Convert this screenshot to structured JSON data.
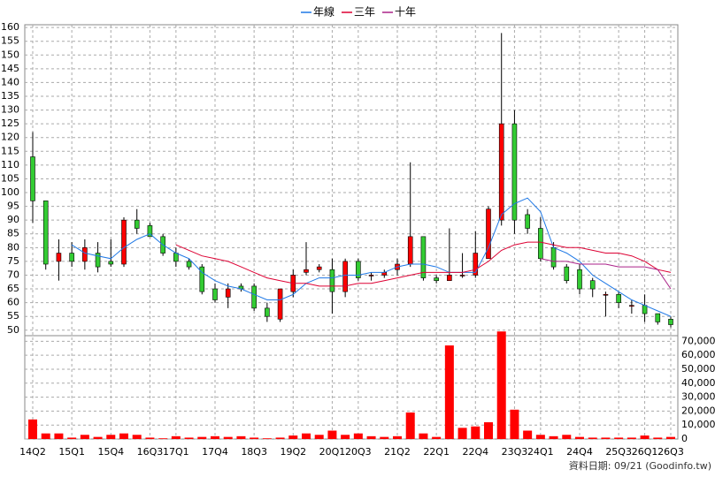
{
  "chart_data": {
    "type": "candlestick",
    "categories": [
      "14Q2",
      null,
      null,
      "15Q1",
      null,
      null,
      "15Q4",
      null,
      null,
      "16Q3",
      null,
      "17Q1",
      null,
      null,
      "17Q4",
      null,
      null,
      "18Q3",
      null,
      null,
      "19Q2",
      null,
      null,
      "20Q1",
      null,
      "20Q3",
      null,
      null,
      "21Q2",
      null,
      null,
      "22Q1",
      null,
      null,
      "22Q4",
      null,
      null,
      "23Q3",
      null,
      "24Q1",
      null,
      null,
      "24Q4",
      null,
      null,
      "25Q3",
      null,
      "26Q1",
      null,
      "26Q3"
    ],
    "open": [
      113,
      97,
      75,
      78,
      75,
      78,
      75,
      74,
      90,
      88,
      84,
      78,
      75,
      73,
      65,
      62,
      66,
      66,
      58,
      54,
      64,
      71,
      72,
      72,
      64,
      75,
      70,
      70,
      72,
      74,
      84,
      69,
      68,
      70,
      70,
      76,
      90,
      125,
      92,
      87,
      80,
      73,
      72,
      68,
      63,
      63,
      59,
      59,
      56,
      54
    ],
    "high": [
      122,
      97,
      83,
      82,
      83,
      82,
      83,
      91,
      94,
      89,
      85,
      80,
      76,
      74,
      67,
      67,
      67,
      67,
      60,
      65,
      72,
      82,
      74,
      76,
      76,
      76,
      71,
      72,
      76,
      111,
      84,
      70,
      87,
      78,
      86,
      95,
      158,
      130,
      94,
      91,
      82,
      74,
      74,
      69,
      64,
      64,
      61,
      63,
      56,
      55
    ],
    "low": [
      89,
      72,
      68,
      73,
      72,
      71,
      73,
      73,
      85,
      84,
      77,
      73,
      72,
      63,
      60,
      58,
      64,
      57,
      53,
      53,
      62,
      70,
      71,
      56,
      62,
      68,
      68,
      69,
      70,
      73,
      68,
      67,
      68,
      69,
      69,
      76,
      88,
      85,
      85,
      75,
      72,
      67,
      63,
      62,
      55,
      58,
      56,
      53,
      52,
      51
    ],
    "close": [
      97,
      74,
      78,
      75,
      80,
      73,
      74,
      90,
      87,
      84,
      78,
      75,
      73,
      64,
      61,
      65,
      65,
      58,
      55,
      65,
      70,
      72,
      73,
      64,
      75,
      69,
      70,
      71,
      74,
      84,
      69,
      68,
      70,
      70,
      78,
      94,
      125,
      90,
      87,
      76,
      73,
      68,
      65,
      65,
      63,
      60,
      59,
      56,
      53,
      52
    ],
    "volume": [
      14000,
      4000,
      4000,
      1000,
      3000,
      1500,
      3000,
      4000,
      3000,
      1000,
      500,
      2000,
      1000,
      1500,
      2000,
      1500,
      2000,
      1000,
      500,
      1000,
      2500,
      4000,
      3000,
      6000,
      3000,
      4000,
      2000,
      1500,
      2000,
      19000,
      4000,
      1500,
      67000,
      8000,
      9000,
      12000,
      77000,
      21000,
      6000,
      3000,
      2000,
      3000,
      1500,
      1000,
      1000,
      1000,
      1000,
      2500,
      1000,
      1500
    ],
    "up_color": "#ff0000",
    "down_color": "#33cc33",
    "volume_color": "#ff0000",
    "series": [
      {
        "name": "年線",
        "color": "#1e78e6",
        "values": [
          null,
          null,
          null,
          81,
          78,
          77,
          76,
          80,
          83,
          85,
          81,
          78,
          76,
          71,
          68,
          66,
          65,
          63,
          61,
          61,
          63,
          67,
          69,
          69,
          70,
          70,
          71,
          71,
          73,
          74,
          74,
          73,
          71,
          71,
          71,
          80,
          92,
          96,
          98,
          93,
          80,
          78,
          75,
          70,
          67,
          64,
          61,
          59,
          57,
          55
        ]
      },
      {
        "name": "三年",
        "color": "#dd0033",
        "values": [
          null,
          null,
          null,
          null,
          null,
          null,
          null,
          null,
          null,
          null,
          null,
          81,
          79,
          77,
          76,
          75,
          73,
          71,
          69,
          68,
          67,
          67,
          66,
          66,
          66,
          67,
          67,
          68,
          69,
          70,
          71,
          71,
          71,
          71,
          72,
          75,
          79,
          81,
          82,
          82,
          81,
          80,
          80,
          79,
          78,
          78,
          77,
          75,
          72,
          71
        ]
      },
      {
        "name": "十年",
        "color": "#aa2288",
        "values": [
          null,
          null,
          null,
          null,
          null,
          null,
          null,
          null,
          null,
          null,
          null,
          null,
          null,
          null,
          null,
          null,
          null,
          null,
          null,
          null,
          null,
          null,
          null,
          null,
          null,
          null,
          null,
          null,
          null,
          null,
          null,
          null,
          null,
          null,
          null,
          null,
          null,
          null,
          null,
          76,
          75,
          75,
          74,
          74,
          74,
          73,
          73,
          73,
          72,
          65
        ]
      }
    ],
    "ylim": [
      48,
      161
    ],
    "yticks": [
      50,
      55,
      60,
      65,
      70,
      75,
      80,
      85,
      90,
      95,
      100,
      105,
      110,
      115,
      120,
      125,
      130,
      135,
      140,
      145,
      150,
      155,
      160
    ],
    "y2lim": [
      0,
      74000
    ],
    "y2ticks": [
      0,
      {
        "value": 10000,
        "label": "10,000"
      },
      {
        "value": 20000,
        "label": "20,000"
      },
      {
        "value": 30000,
        "label": "30,000"
      },
      {
        "value": 40000,
        "label": "40,000"
      },
      {
        "value": 50000,
        "label": "50,000"
      },
      {
        "value": 60000,
        "label": "60,000"
      },
      {
        "value": 70000,
        "label": "70,000"
      }
    ],
    "grid": true,
    "source": "資料日期: 09/21  (Goodinfo.tw)"
  }
}
